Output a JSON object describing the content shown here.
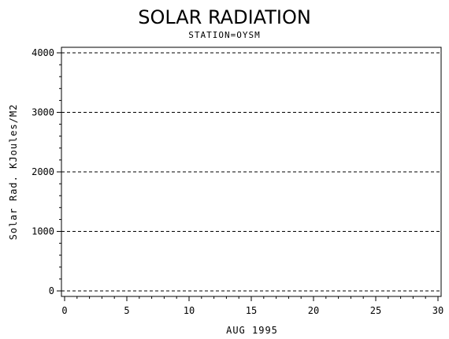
{
  "chart_data": {
    "type": "line",
    "title": "SOLAR RADIATION",
    "subtitle": "STATION=OYSM",
    "xlabel": "AUG 1995",
    "ylabel": "Solar Rad. KJoules/M2",
    "xlim": [
      0,
      30
    ],
    "ylim": [
      0,
      4000
    ],
    "x_ticks": [
      0,
      5,
      10,
      15,
      20,
      25,
      30
    ],
    "y_ticks": [
      0,
      1000,
      2000,
      3000,
      4000
    ],
    "grid": "horizontal-dashed",
    "series": [],
    "colors": {
      "axis": "#000000",
      "grid": "#000000",
      "background": "#ffffff"
    }
  }
}
